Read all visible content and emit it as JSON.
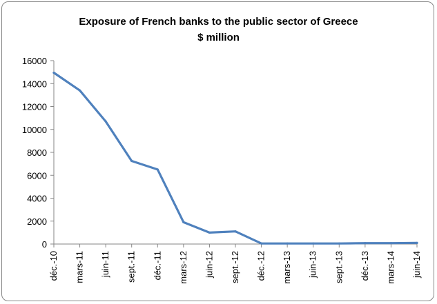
{
  "chart_data": {
    "type": "line",
    "title": "Exposure of French banks to the public sector of Greece",
    "subtitle": "$ million",
    "xlabel": "",
    "ylabel": "",
    "categories": [
      "déc.-10",
      "mars-11",
      "juin-11",
      "sept.-11",
      "déc.-11",
      "mars-12",
      "juin-12",
      "sept.-12",
      "déc.-12",
      "mars-13",
      "juin-13",
      "sept.-13",
      "déc.-13",
      "mars-14",
      "juin-14"
    ],
    "series": [
      {
        "values": [
          14950,
          13400,
          10700,
          7250,
          6500,
          1900,
          1000,
          1100,
          50,
          50,
          50,
          50,
          80,
          80,
          100
        ],
        "color": "#4f81bd"
      }
    ],
    "ylim": [
      0,
      16000
    ],
    "yticks": [
      0,
      2000,
      4000,
      6000,
      8000,
      10000,
      12000,
      14000,
      16000
    ],
    "grid": false,
    "legend": "none"
  }
}
